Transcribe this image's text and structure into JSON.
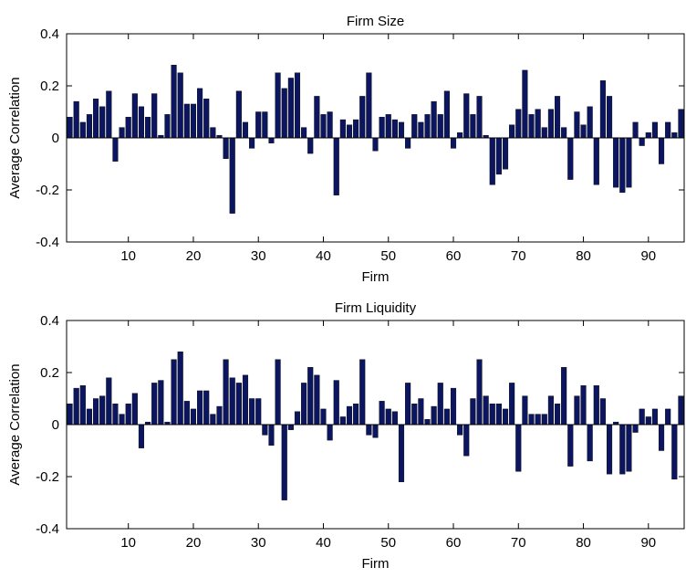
{
  "colors": {
    "bar": "#0B1560",
    "axis": "#000000",
    "background": "#ffffff"
  },
  "chart_data": [
    {
      "type": "bar",
      "title": "Firm Size",
      "xlabel": "Firm",
      "ylabel": "Average Correlation",
      "xlim": [
        0.5,
        95.5
      ],
      "ylim": [
        -0.4,
        0.4
      ],
      "xticks": [
        10,
        20,
        30,
        40,
        50,
        60,
        70,
        80,
        90
      ],
      "xtick_labels": [
        "10",
        "20",
        "30",
        "40",
        "50",
        "60",
        "70",
        "80",
        "90"
      ],
      "yticks": [
        -0.4,
        -0.2,
        0,
        0.2,
        0.4
      ],
      "ytick_labels": [
        "-0.4",
        "-0.2",
        "0",
        "0.2",
        "0.4"
      ],
      "grid": false,
      "x": [
        1,
        2,
        3,
        4,
        5,
        6,
        7,
        8,
        9,
        10,
        11,
        12,
        13,
        14,
        15,
        16,
        17,
        18,
        19,
        20,
        21,
        22,
        23,
        24,
        25,
        26,
        27,
        28,
        29,
        30,
        31,
        32,
        33,
        34,
        35,
        36,
        37,
        38,
        39,
        40,
        41,
        42,
        43,
        44,
        45,
        46,
        47,
        48,
        49,
        50,
        51,
        52,
        53,
        54,
        55,
        56,
        57,
        58,
        59,
        60,
        61,
        62,
        63,
        64,
        65,
        66,
        67,
        68,
        69,
        70,
        71,
        72,
        73,
        74,
        75,
        76,
        77,
        78,
        79,
        80,
        81,
        82,
        83,
        84,
        85,
        86,
        87,
        88,
        89,
        90,
        91,
        92,
        93,
        94,
        95
      ],
      "values": [
        0.08,
        0.14,
        0.06,
        0.09,
        0.15,
        0.12,
        0.18,
        -0.09,
        0.04,
        0.08,
        0.17,
        0.12,
        0.08,
        0.17,
        0.01,
        0.09,
        0.28,
        0.25,
        0.13,
        0.13,
        0.19,
        0.15,
        0.04,
        0.01,
        -0.08,
        -0.29,
        0.18,
        0.06,
        -0.04,
        0.1,
        0.1,
        -0.02,
        0.25,
        0.19,
        0.23,
        0.25,
        0.04,
        -0.06,
        0.16,
        0.09,
        0.1,
        -0.22,
        0.07,
        0.05,
        0.07,
        0.16,
        0.25,
        -0.05,
        0.08,
        0.09,
        0.07,
        0.06,
        -0.04,
        0.09,
        0.06,
        0.09,
        0.14,
        0.09,
        0.18,
        -0.04,
        0.02,
        0.17,
        0.09,
        0.16,
        0.01,
        -0.18,
        -0.14,
        -0.12,
        0.05,
        0.11,
        0.26,
        0.09,
        0.11,
        0.04,
        0.11,
        0.16,
        0.04,
        -0.16,
        0.1,
        0.05,
        0.12,
        -0.18,
        0.22,
        0.16,
        -0.19,
        -0.21,
        -0.19,
        0.06,
        -0.03,
        0.02,
        0.06,
        -0.1,
        0.06,
        0.02,
        0.11
      ]
    },
    {
      "type": "bar",
      "title": "Firm Liquidity",
      "xlabel": "Firm",
      "ylabel": "Average Correlation",
      "xlim": [
        0.5,
        95.5
      ],
      "ylim": [
        -0.4,
        0.4
      ],
      "xticks": [
        10,
        20,
        30,
        40,
        50,
        60,
        70,
        80,
        90
      ],
      "xtick_labels": [
        "10",
        "20",
        "30",
        "40",
        "50",
        "60",
        "70",
        "80",
        "90"
      ],
      "yticks": [
        -0.4,
        -0.2,
        0,
        0.2,
        0.4
      ],
      "ytick_labels": [
        "-0.4",
        "-0.2",
        "0",
        "0.2",
        "0.4"
      ],
      "grid": false,
      "x": [
        1,
        2,
        3,
        4,
        5,
        6,
        7,
        8,
        9,
        10,
        11,
        12,
        13,
        14,
        15,
        16,
        17,
        18,
        19,
        20,
        21,
        22,
        23,
        24,
        25,
        26,
        27,
        28,
        29,
        30,
        31,
        32,
        33,
        34,
        35,
        36,
        37,
        38,
        39,
        40,
        41,
        42,
        43,
        44,
        45,
        46,
        47,
        48,
        49,
        50,
        51,
        52,
        53,
        54,
        55,
        56,
        57,
        58,
        59,
        60,
        61,
        62,
        63,
        64,
        65,
        66,
        67,
        68,
        69,
        70,
        71,
        72,
        73,
        74,
        75,
        76,
        77,
        78,
        79,
        80,
        81,
        82,
        83,
        84,
        85,
        86,
        87,
        88,
        89,
        90,
        91,
        92,
        93,
        94,
        95
      ],
      "values": [
        0.08,
        0.14,
        0.15,
        0.06,
        0.1,
        0.11,
        0.18,
        0.08,
        0.04,
        0.08,
        0.12,
        -0.09,
        0.01,
        0.16,
        0.17,
        0.01,
        0.25,
        0.28,
        0.09,
        0.06,
        0.13,
        0.13,
        0.04,
        0.07,
        0.25,
        0.18,
        0.16,
        0.19,
        0.1,
        0.1,
        -0.04,
        -0.08,
        0.25,
        -0.29,
        -0.02,
        0.05,
        0.16,
        0.22,
        0.19,
        0.06,
        -0.06,
        0.17,
        0.03,
        0.07,
        0.08,
        0.25,
        -0.04,
        -0.05,
        0.09,
        0.06,
        0.05,
        -0.22,
        0.16,
        0.08,
        0.1,
        0.02,
        0.07,
        0.16,
        0.06,
        0.14,
        -0.04,
        -0.12,
        0.1,
        0.25,
        0.11,
        0.08,
        0.08,
        0.06,
        0.16,
        -0.18,
        0.11,
        0.04,
        0.04,
        0.04,
        0.11,
        0.08,
        0.22,
        -0.16,
        0.11,
        0.15,
        -0.14,
        0.15,
        0.1,
        -0.19,
        0.01,
        -0.19,
        -0.18,
        -0.03,
        0.06,
        0.03,
        0.06,
        -0.1,
        0.06,
        -0.21,
        0.11
      ]
    }
  ]
}
